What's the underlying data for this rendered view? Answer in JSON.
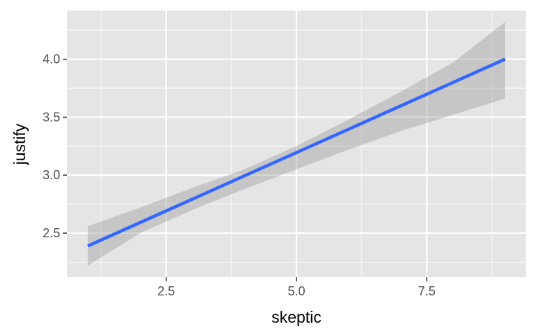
{
  "chart_data": {
    "type": "line",
    "xlabel": "skeptic",
    "ylabel": "justify",
    "xlim": [
      0.6,
      9.4
    ],
    "ylim": [
      2.12,
      4.42
    ],
    "x_ticks": [
      2.5,
      5.0,
      7.5
    ],
    "x_tick_labels": [
      "2.5",
      "5.0",
      "7.5"
    ],
    "y_ticks": [
      2.5,
      3.0,
      3.5,
      4.0
    ],
    "y_tick_labels": [
      "2.5",
      "3.0",
      "3.5",
      "4.0"
    ],
    "grid": true,
    "series": [
      {
        "x": [
          1.0,
          9.0
        ],
        "y": [
          2.39,
          4.0
        ],
        "color": "#3366ff"
      }
    ],
    "confidence_band": {
      "x": [
        1.0,
        2.0,
        3.0,
        4.0,
        5.0,
        6.0,
        7.0,
        8.0,
        9.0
      ],
      "upper": [
        2.56,
        2.72,
        2.89,
        3.05,
        3.25,
        3.48,
        3.72,
        3.97,
        4.32
      ],
      "lower": [
        2.22,
        2.5,
        2.7,
        2.88,
        3.05,
        3.22,
        3.38,
        3.52,
        3.66
      ],
      "color": "#999999"
    },
    "panel_background": "#e5e5e5",
    "gridline_color": "#ffffff"
  }
}
